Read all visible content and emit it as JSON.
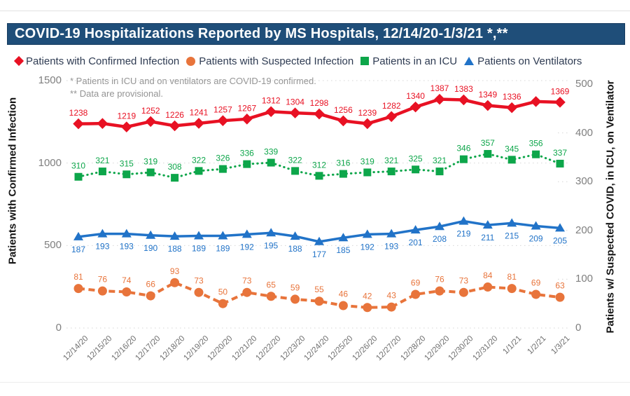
{
  "page": {
    "title": "COVID-19 Hospitalizations Reported by MS Hospitals, 12/14/20-1/3/21 *,**",
    "notes": [
      "* Patients in ICU and on ventilators are COVID-19 confirmed.",
      "** Data are provisional."
    ]
  },
  "axes": {
    "left": {
      "title": "Patients with Confirmed Infection",
      "ticks": [
        1500,
        1000,
        500,
        0
      ],
      "max": 1500
    },
    "right": {
      "title": "Patients w/ Suspected COVID, in ICU, on Ventilator",
      "ticks": [
        500,
        400,
        300,
        200,
        100,
        0
      ],
      "max": 500
    }
  },
  "chart_data": {
    "type": "line",
    "title": "COVID-19 Hospitalizations Reported by MS Hospitals, 12/14/20-1/3/21 *,**",
    "grid": "dotted-horizontal",
    "legend_position": "top",
    "ylim_left": [
      0,
      1500
    ],
    "ylim_right": [
      0,
      500
    ],
    "categories": [
      "12/14/20",
      "12/15/20",
      "12/16/20",
      "12/17/20",
      "12/18/20",
      "12/19/20",
      "12/20/20",
      "12/21/20",
      "12/22/20",
      "12/23/20",
      "12/24/20",
      "12/25/20",
      "12/26/20",
      "12/27/20",
      "12/28/20",
      "12/29/20",
      "12/30/20",
      "12/31/20",
      "1/1/21",
      "1/2/21",
      "1/3/21"
    ],
    "series": [
      {
        "name": "Patients with Confirmed Infection",
        "axis": "left",
        "color": "#E81123",
        "marker": "diamond",
        "line_style": "solid",
        "line_width": 4.5,
        "marker_size": 11,
        "label_position": "above",
        "values": [
          1238,
          1240,
          1219,
          1252,
          1226,
          1241,
          1257,
          1267,
          1312,
          1304,
          1298,
          1256,
          1239,
          1282,
          1340,
          1387,
          1383,
          1349,
          1336,
          1373,
          1369
        ],
        "labels": [
          "1238",
          "",
          "1219",
          "1252",
          "1226",
          "1241",
          "1257",
          "1267",
          "1312",
          "1304",
          "1298",
          "1256",
          "1239",
          "1282",
          "1340",
          "1387",
          "1383",
          "1349",
          "1336",
          "",
          "1369"
        ]
      },
      {
        "name": "Patients with Suspected Infection",
        "axis": "right",
        "color": "#E8743B",
        "marker": "circle",
        "line_style": "dashed",
        "line_width": 4,
        "marker_size": 13,
        "label_position": "above",
        "values": [
          81,
          76,
          74,
          66,
          93,
          73,
          50,
          73,
          65,
          59,
          55,
          46,
          42,
          43,
          69,
          76,
          73,
          84,
          81,
          69,
          63
        ],
        "labels": [
          "81",
          "76",
          "74",
          "66",
          "93",
          "73",
          "50",
          "73",
          "65",
          "59",
          "55",
          "46",
          "42",
          "43",
          "69",
          "76",
          "73",
          "84",
          "81",
          "69",
          "63"
        ]
      },
      {
        "name": "Patients in an ICU",
        "axis": "right",
        "color": "#0DA64A",
        "marker": "square",
        "line_style": "dotted",
        "line_width": 3,
        "marker_size": 11,
        "label_position": "above",
        "values": [
          310,
          321,
          315,
          319,
          308,
          322,
          326,
          336,
          339,
          322,
          312,
          316,
          319,
          321,
          325,
          321,
          346,
          357,
          345,
          356,
          337
        ],
        "labels": [
          "310",
          "321",
          "315",
          "319",
          "308",
          "322",
          "326",
          "336",
          "339",
          "322",
          "312",
          "316",
          "319",
          "321",
          "325",
          "321",
          "346",
          "357",
          "345",
          "356",
          "337"
        ]
      },
      {
        "name": "Patients on Ventilators",
        "axis": "right",
        "color": "#2173C8",
        "marker": "triangle",
        "line_style": "solid",
        "line_width": 3.5,
        "marker_size": 12,
        "label_position": "below",
        "values": [
          187,
          193,
          193,
          190,
          188,
          189,
          189,
          192,
          195,
          188,
          177,
          185,
          192,
          193,
          201,
          208,
          219,
          211,
          215,
          209,
          205
        ],
        "labels": [
          "187",
          "193",
          "193",
          "190",
          "188",
          "189",
          "189",
          "192",
          "195",
          "188",
          "177",
          "185",
          "192",
          "193",
          "201",
          "208",
          "219",
          "211",
          "215",
          "209",
          "205"
        ]
      }
    ]
  }
}
